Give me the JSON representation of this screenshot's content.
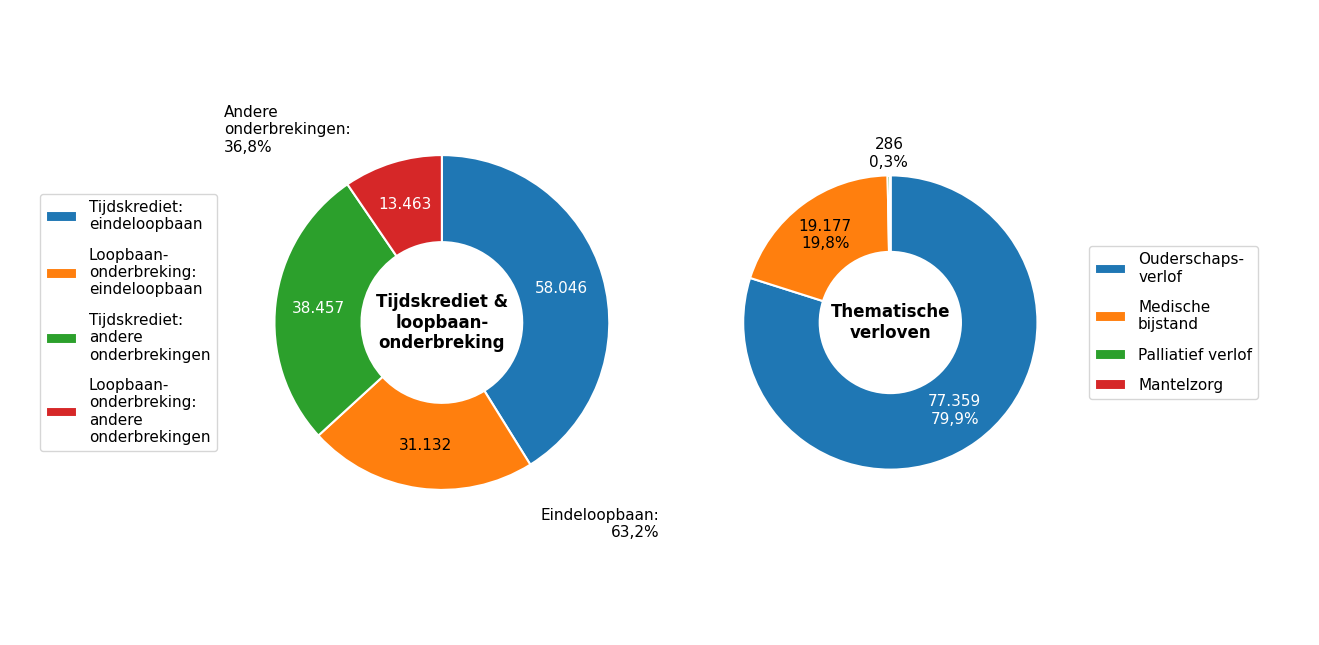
{
  "chart_data": [
    {
      "type": "pie",
      "title": "Tijdskrediet &\nloopbaan-\nonderbreking",
      "categories": [
        "Tijdskrediet:\neindeloopbaan",
        "Loopbaan-\nonderbreking:\neindeloopbaan",
        "Tijdskrediet:\nandere\nonderbrekingen",
        "Loopbaan-\nonderbreking:\nandere\nonderbrekingen"
      ],
      "values": [
        58046,
        31132,
        38457,
        13463
      ],
      "value_labels": [
        "58.046",
        "31.132",
        "38.457",
        "13.463"
      ],
      "colors": [
        "#1f77b4",
        "#ff7f0e",
        "#2ca02c",
        "#d62728"
      ],
      "annotations": [
        "Andere\nonderbrekingen:\n36,8%",
        "Eindeloopbaan:\n63,2%"
      ],
      "data_labels": true,
      "legend": "center right"
    },
    {
      "type": "pie",
      "title": "Thematische\nverloven",
      "categories": [
        "Ouderschaps-\nverlof",
        "Medische\nbijstand",
        "Palliatief verlof",
        "Mantelzorg"
      ],
      "values": [
        77359,
        19177,
        286,
        1
      ],
      "value_labels": [
        "77.359\n79,9%",
        "19.177\n19,8%",
        "286\n0,3%",
        null
      ],
      "colors": [
        "#1f77b4",
        "#ff7f0e",
        "#2ca02c",
        "#d62728"
      ],
      "data_labels": true,
      "legend": "center left"
    }
  ]
}
